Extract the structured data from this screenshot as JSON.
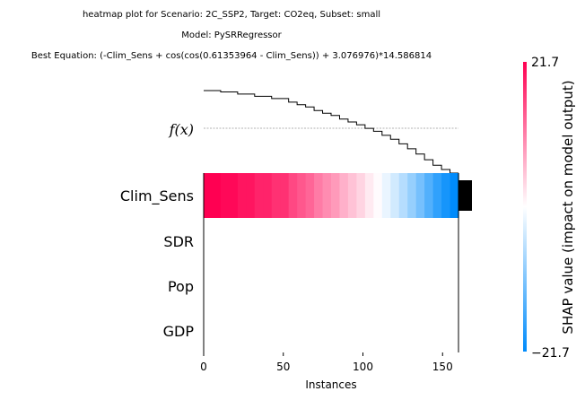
{
  "chart_data": {
    "type": "heatmap",
    "title_lines": [
      "heatmap plot for Scenario: 2C_SSP2, Target: CO2eq, Subset: small",
      "Model: PySRRegressor",
      "Best Equation: (-Clim_Sens + cos(cos(0.61353964 - Clim_Sens)) + 3.076976)*14.586814"
    ],
    "xlabel": "Instances",
    "x_ticks": [
      0,
      50,
      100,
      150
    ],
    "xlim": [
      0,
      160
    ],
    "fx_label": "f(x)",
    "features": [
      "Clim_Sens",
      "SDR",
      "Pop",
      "GDP"
    ],
    "feature_importance": [
      1.0,
      0.0,
      0.0,
      0.0
    ],
    "fx_values": [
      21.7,
      21.7,
      21.0,
      21.0,
      19.9,
      19.9,
      18.7,
      18.7,
      17.5,
      17.5,
      15.6,
      14.3,
      13.1,
      11.2,
      9.8,
      8.6,
      6.7,
      5.2,
      3.7,
      1.8,
      0.3,
      -1.8,
      -3.9,
      -6.3,
      -8.9,
      -11.7,
      -14.7,
      -17.6,
      -19.8,
      -21.7
    ],
    "shap_values": {
      "Clim_Sens": [
        21.7,
        21.7,
        21.0,
        21.0,
        19.9,
        19.9,
        18.7,
        18.7,
        17.5,
        17.5,
        15.6,
        14.3,
        13.1,
        11.2,
        9.8,
        8.6,
        6.7,
        5.2,
        3.7,
        1.8,
        0.3,
        -1.8,
        -3.9,
        -6.3,
        -8.9,
        -11.7,
        -14.7,
        -17.6,
        -19.8,
        -21.7
      ],
      "SDR": [
        0
      ],
      "Pop": [
        0
      ],
      "GDP": [
        0
      ]
    },
    "colorbar": {
      "label": "SHAP value (impact on model output)",
      "max_label": "21.7",
      "min_label": "−21.7",
      "min": -21.7,
      "max": 21.7,
      "colors": {
        "low": "#008bfb",
        "mid": "#ffffff",
        "high": "#ff0052"
      }
    }
  }
}
